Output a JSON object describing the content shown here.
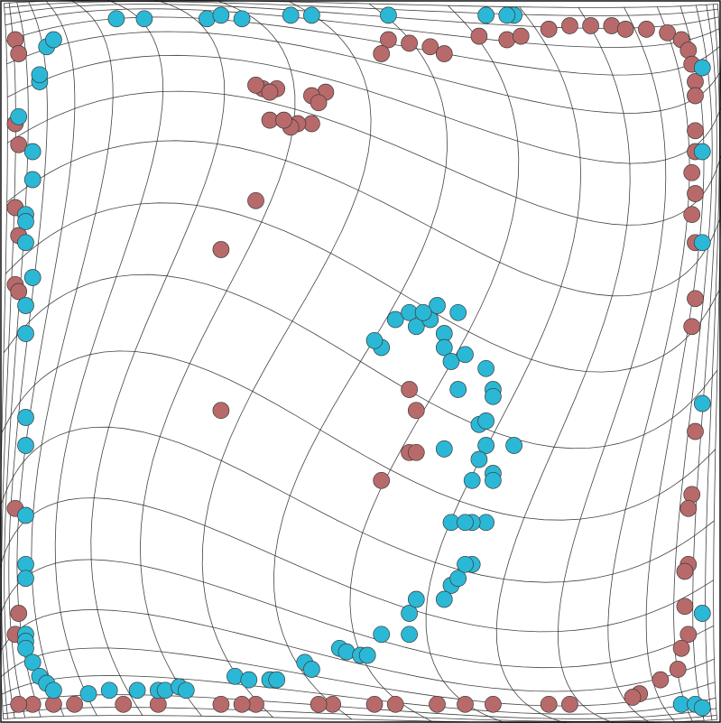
{
  "chart_data": {
    "type": "scatter",
    "title": "",
    "xlabel": "",
    "ylabel": "",
    "grid": "warped-mesh",
    "grid_divisions": 20,
    "xlim": [
      0,
      1
    ],
    "ylim": [
      0,
      1
    ],
    "series": [
      {
        "class": "red",
        "color": "#b86a6a",
        "points": [
          [
            0.54,
            0.04
          ],
          [
            0.53,
            0.06
          ],
          [
            0.57,
            0.045
          ],
          [
            0.6,
            0.05
          ],
          [
            0.62,
            0.06
          ],
          [
            0.67,
            0.035
          ],
          [
            0.71,
            0.04
          ],
          [
            0.73,
            0.035
          ],
          [
            0.77,
            0.025
          ],
          [
            0.8,
            0.02
          ],
          [
            0.83,
            0.02
          ],
          [
            0.86,
            0.02
          ],
          [
            0.88,
            0.025
          ],
          [
            0.91,
            0.025
          ],
          [
            0.94,
            0.03
          ],
          [
            0.96,
            0.04
          ],
          [
            0.97,
            0.055
          ],
          [
            0.975,
            0.075
          ],
          [
            0.98,
            0.1
          ],
          [
            0.98,
            0.12
          ],
          [
            0.98,
            0.17
          ],
          [
            0.98,
            0.2
          ],
          [
            0.975,
            0.23
          ],
          [
            0.98,
            0.26
          ],
          [
            0.975,
            0.29
          ],
          [
            0.98,
            0.33
          ],
          [
            0.98,
            0.41
          ],
          [
            0.975,
            0.45
          ],
          [
            0.98,
            0.6
          ],
          [
            0.975,
            0.69
          ],
          [
            0.97,
            0.71
          ],
          [
            0.97,
            0.79
          ],
          [
            0.965,
            0.8
          ],
          [
            0.965,
            0.85
          ],
          [
            0.97,
            0.89
          ],
          [
            0.96,
            0.91
          ],
          [
            0.955,
            0.94
          ],
          [
            0.93,
            0.955
          ],
          [
            0.9,
            0.975
          ],
          [
            0.89,
            0.98
          ],
          [
            0.8,
            0.99
          ],
          [
            0.77,
            0.99
          ],
          [
            0.69,
            0.99
          ],
          [
            0.65,
            0.99
          ],
          [
            0.61,
            0.99
          ],
          [
            0.55,
            0.99
          ],
          [
            0.52,
            0.99
          ],
          [
            0.46,
            0.99
          ],
          [
            0.44,
            0.99
          ],
          [
            0.35,
            0.99
          ],
          [
            0.33,
            0.99
          ],
          [
            0.3,
            0.99
          ],
          [
            0.21,
            0.99
          ],
          [
            0.16,
            0.99
          ],
          [
            0.09,
            0.99
          ],
          [
            0.06,
            0.99
          ],
          [
            0.03,
            0.99
          ],
          [
            0.01,
            0.99
          ],
          [
            0.005,
            0.04
          ],
          [
            0.01,
            0.06
          ],
          [
            0.005,
            0.16
          ],
          [
            0.01,
            0.19
          ],
          [
            0.005,
            0.28
          ],
          [
            0.01,
            0.32
          ],
          [
            0.005,
            0.39
          ],
          [
            0.01,
            0.4
          ],
          [
            0.005,
            0.71
          ],
          [
            0.01,
            0.86
          ],
          [
            0.005,
            0.89
          ],
          [
            0.36,
            0.11
          ],
          [
            0.35,
            0.105
          ],
          [
            0.38,
            0.11
          ],
          [
            0.37,
            0.115
          ],
          [
            0.45,
            0.115
          ],
          [
            0.43,
            0.12
          ],
          [
            0.44,
            0.13
          ],
          [
            0.43,
            0.16
          ],
          [
            0.41,
            0.16
          ],
          [
            0.4,
            0.165
          ],
          [
            0.57,
            0.63
          ],
          [
            0.58,
            0.63
          ],
          [
            0.53,
            0.67
          ],
          [
            0.58,
            0.57
          ],
          [
            0.57,
            0.54
          ],
          [
            0.37,
            0.155
          ],
          [
            0.39,
            0.155
          ],
          [
            0.35,
            0.27
          ],
          [
            0.3,
            0.34
          ],
          [
            0.3,
            0.57
          ]
        ]
      },
      {
        "class": "cyan",
        "color": "#2bb8d6",
        "points": [
          [
            0.05,
            0.05
          ],
          [
            0.06,
            0.04
          ],
          [
            0.04,
            0.1
          ],
          [
            0.04,
            0.09
          ],
          [
            0.15,
            0.01
          ],
          [
            0.19,
            0.01
          ],
          [
            0.28,
            0.01
          ],
          [
            0.3,
            0.005
          ],
          [
            0.33,
            0.01
          ],
          [
            0.4,
            0.005
          ],
          [
            0.43,
            0.005
          ],
          [
            0.54,
            0.005
          ],
          [
            0.68,
            0.005
          ],
          [
            0.72,
            0.005
          ],
          [
            0.71,
            0.005
          ],
          [
            0.01,
            0.15
          ],
          [
            0.03,
            0.2
          ],
          [
            0.03,
            0.24
          ],
          [
            0.02,
            0.29
          ],
          [
            0.02,
            0.3
          ],
          [
            0.02,
            0.33
          ],
          [
            0.03,
            0.38
          ],
          [
            0.02,
            0.42
          ],
          [
            0.02,
            0.46
          ],
          [
            0.02,
            0.58
          ],
          [
            0.02,
            0.62
          ],
          [
            0.02,
            0.72
          ],
          [
            0.02,
            0.79
          ],
          [
            0.02,
            0.81
          ],
          [
            0.02,
            0.89
          ],
          [
            0.02,
            0.9
          ],
          [
            0.02,
            0.91
          ],
          [
            0.03,
            0.93
          ],
          [
            0.04,
            0.95
          ],
          [
            0.05,
            0.96
          ],
          [
            0.06,
            0.97
          ],
          [
            0.11,
            0.975
          ],
          [
            0.14,
            0.97
          ],
          [
            0.18,
            0.97
          ],
          [
            0.21,
            0.97
          ],
          [
            0.22,
            0.97
          ],
          [
            0.24,
            0.965
          ],
          [
            0.25,
            0.97
          ],
          [
            0.32,
            0.95
          ],
          [
            0.34,
            0.955
          ],
          [
            0.37,
            0.955
          ],
          [
            0.38,
            0.955
          ],
          [
            0.42,
            0.93
          ],
          [
            0.43,
            0.94
          ],
          [
            0.47,
            0.91
          ],
          [
            0.48,
            0.915
          ],
          [
            0.5,
            0.92
          ],
          [
            0.51,
            0.92
          ],
          [
            0.53,
            0.89
          ],
          [
            0.57,
            0.89
          ],
          [
            0.57,
            0.86
          ],
          [
            0.58,
            0.84
          ],
          [
            0.63,
            0.82
          ],
          [
            0.64,
            0.81
          ],
          [
            0.62,
            0.84
          ],
          [
            0.66,
            0.79
          ],
          [
            0.55,
            0.44
          ],
          [
            0.57,
            0.43
          ],
          [
            0.58,
            0.45
          ],
          [
            0.6,
            0.44
          ],
          [
            0.61,
            0.42
          ],
          [
            0.59,
            0.43
          ],
          [
            0.62,
            0.46
          ],
          [
            0.62,
            0.48
          ],
          [
            0.63,
            0.5
          ],
          [
            0.64,
            0.43
          ],
          [
            0.65,
            0.49
          ],
          [
            0.68,
            0.51
          ],
          [
            0.69,
            0.54
          ],
          [
            0.69,
            0.55
          ],
          [
            0.67,
            0.59
          ],
          [
            0.68,
            0.62
          ],
          [
            0.67,
            0.64
          ],
          [
            0.66,
            0.67
          ],
          [
            0.69,
            0.66
          ],
          [
            0.69,
            0.67
          ],
          [
            0.72,
            0.62
          ],
          [
            0.68,
            0.73
          ],
          [
            0.66,
            0.73
          ],
          [
            0.63,
            0.73
          ],
          [
            0.65,
            0.79
          ],
          [
            0.53,
            0.48
          ],
          [
            0.52,
            0.47
          ],
          [
            0.64,
            0.54
          ],
          [
            0.68,
            0.585
          ],
          [
            0.62,
            0.625
          ],
          [
            0.65,
            0.73
          ],
          [
            0.99,
            0.08
          ],
          [
            0.99,
            0.2
          ],
          [
            0.99,
            0.33
          ],
          [
            0.99,
            0.56
          ],
          [
            0.99,
            0.86
          ],
          [
            0.96,
            0.99
          ],
          [
            0.98,
            0.99
          ],
          [
            0.99,
            0.995
          ]
        ]
      }
    ]
  }
}
